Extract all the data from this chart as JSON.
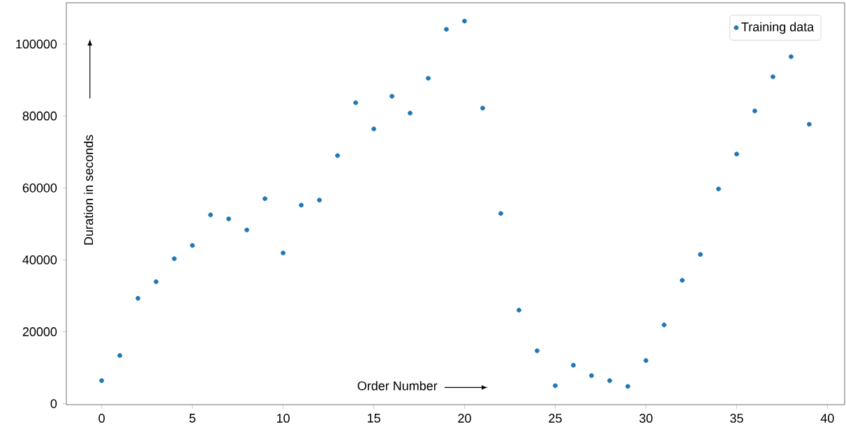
{
  "chart_data": {
    "type": "scatter",
    "xlabel": "Order Number",
    "ylabel": "Duration in seconds",
    "x": [
      0,
      1,
      2,
      3,
      4,
      5,
      6,
      7,
      8,
      9,
      10,
      11,
      12,
      13,
      14,
      15,
      16,
      17,
      18,
      19,
      20,
      21,
      22,
      23,
      24,
      25,
      26,
      27,
      28,
      29,
      30,
      31,
      32,
      33,
      34,
      35,
      36,
      37,
      38,
      39
    ],
    "series": [
      {
        "name": "Training data",
        "color": "#1f77b4",
        "values": [
          6400,
          13400,
          29300,
          33900,
          40300,
          44000,
          52500,
          51400,
          48300,
          57000,
          41900,
          55200,
          56600,
          69000,
          83700,
          76400,
          85500,
          80800,
          90500,
          104100,
          106400,
          82200,
          52900,
          26000,
          14700,
          5000,
          10700,
          7800,
          6400,
          4800,
          12000,
          21900,
          34300,
          41500,
          59700,
          69400,
          81400,
          90900,
          96500,
          77700
        ]
      }
    ],
    "xlim": [
      -1.95,
      40.95
    ],
    "ylim": [
      -280,
      111480
    ],
    "xticks": [
      0,
      5,
      10,
      15,
      20,
      25,
      30,
      35,
      40
    ],
    "yticks": [
      0,
      20000,
      40000,
      60000,
      80000,
      100000
    ],
    "marker": "circle",
    "legend": "top right",
    "grid": false
  }
}
